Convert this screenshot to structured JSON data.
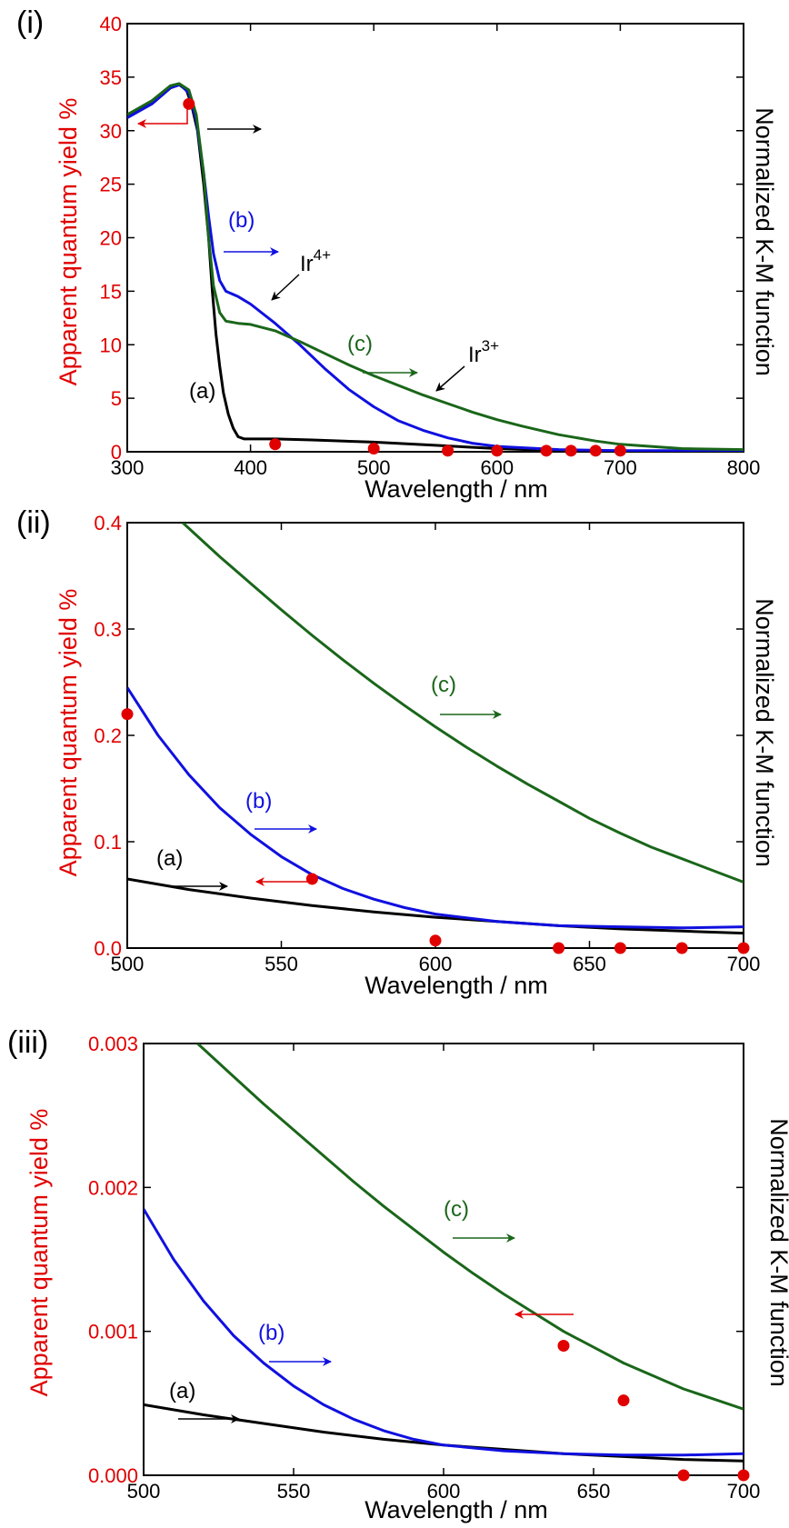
{
  "colors": {
    "red": "#e00000",
    "black": "#000000",
    "blue": "#1010e0",
    "green": "#1a661a"
  },
  "chart_data": [
    {
      "type": "line",
      "panel_label": "(i)",
      "xlabel": "Wavelength / nm",
      "ylabel_left": "Apparent quantum yield %",
      "ylabel_right": "Normalized K-M function",
      "xlim": [
        300,
        800
      ],
      "ylim": [
        0,
        40
      ],
      "xticks": [
        "300",
        "400",
        "500",
        "600",
        "700",
        "800"
      ],
      "yticks": [
        "0",
        "5",
        "10",
        "15",
        "20",
        "25",
        "30",
        "35",
        "40"
      ],
      "series": [
        {
          "name": "(a)",
          "color": "#000000",
          "points": [
            [
              300,
              31.5
            ],
            [
              320,
              32.5
            ],
            [
              335,
              34.0
            ],
            [
              342,
              34.3
            ],
            [
              348,
              33.8
            ],
            [
              352,
              32.5
            ],
            [
              357,
              30.0
            ],
            [
              362,
              25.0
            ],
            [
              366,
              20.0
            ],
            [
              369,
              15.0
            ],
            [
              372,
              11.0
            ],
            [
              375,
              8.0
            ],
            [
              378,
              5.5
            ],
            [
              382,
              3.5
            ],
            [
              386,
              2.2
            ],
            [
              390,
              1.4
            ],
            [
              395,
              1.2
            ],
            [
              420,
              1.2
            ],
            [
              450,
              1.1
            ],
            [
              500,
              0.9
            ],
            [
              550,
              0.6
            ],
            [
              600,
              0.3
            ],
            [
              650,
              0.1
            ],
            [
              700,
              0.05
            ],
            [
              800,
              0.0
            ]
          ]
        },
        {
          "name": "(b)",
          "color": "#1010e0",
          "points": [
            [
              300,
              31.2
            ],
            [
              320,
              32.5
            ],
            [
              335,
              34.0
            ],
            [
              343,
              34.3
            ],
            [
              350,
              33.5
            ],
            [
              356,
              31.0
            ],
            [
              362,
              26.0
            ],
            [
              366,
              22.0
            ],
            [
              370,
              18.5
            ],
            [
              375,
              16.0
            ],
            [
              380,
              15.0
            ],
            [
              390,
              14.5
            ],
            [
              400,
              13.8
            ],
            [
              420,
              12.0
            ],
            [
              440,
              10.0
            ],
            [
              460,
              7.8
            ],
            [
              480,
              5.8
            ],
            [
              500,
              4.2
            ],
            [
              520,
              2.9
            ],
            [
              540,
              2.0
            ],
            [
              560,
              1.3
            ],
            [
              580,
              0.8
            ],
            [
              600,
              0.5
            ],
            [
              650,
              0.2
            ],
            [
              700,
              0.1
            ],
            [
              800,
              0.1
            ]
          ]
        },
        {
          "name": "(c)",
          "color": "#1a661a",
          "points": [
            [
              300,
              31.5
            ],
            [
              320,
              32.8
            ],
            [
              335,
              34.2
            ],
            [
              342,
              34.4
            ],
            [
              350,
              33.8
            ],
            [
              356,
              31.5
            ],
            [
              362,
              26.0
            ],
            [
              366,
              20.0
            ],
            [
              370,
              15.5
            ],
            [
              375,
              13.0
            ],
            [
              380,
              12.2
            ],
            [
              390,
              12.0
            ],
            [
              400,
              11.9
            ],
            [
              420,
              11.3
            ],
            [
              440,
              10.3
            ],
            [
              460,
              9.2
            ],
            [
              480,
              8.1
            ],
            [
              500,
              7.1
            ],
            [
              520,
              6.2
            ],
            [
              540,
              5.3
            ],
            [
              560,
              4.5
            ],
            [
              580,
              3.7
            ],
            [
              600,
              3.0
            ],
            [
              620,
              2.4
            ],
            [
              650,
              1.6
            ],
            [
              680,
              1.0
            ],
            [
              700,
              0.7
            ],
            [
              750,
              0.3
            ],
            [
              800,
              0.2
            ]
          ]
        }
      ],
      "points_name": "Apparent quantum yield",
      "points": [
        [
          350,
          32.5
        ],
        [
          420,
          0.7
        ],
        [
          500,
          0.3
        ],
        [
          560,
          0.1
        ],
        [
          600,
          0.1
        ],
        [
          640,
          0.1
        ],
        [
          660,
          0.1
        ],
        [
          680,
          0.1
        ],
        [
          700,
          0.1
        ]
      ],
      "annotations": {
        "a": "(a)",
        "b": "(b)",
        "c": "(c)",
        "ir4": "Ir",
        "ir4_sup": "4+",
        "ir3": "Ir",
        "ir3_sup": "3+"
      }
    },
    {
      "type": "line",
      "panel_label": "(ii)",
      "xlabel": "Wavelength / nm",
      "ylabel_left": "Apparent quantum yield %",
      "ylabel_right": "Normalized K-M function",
      "xlim": [
        500,
        700
      ],
      "ylim": [
        0,
        0.4
      ],
      "xticks": [
        "500",
        "550",
        "600",
        "650",
        "700"
      ],
      "yticks": [
        "0.0",
        "0.1",
        "0.2",
        "0.3",
        "0.4"
      ],
      "series": [
        {
          "name": "(a)",
          "color": "#000000",
          "points": [
            [
              500,
              0.065
            ],
            [
              520,
              0.055
            ],
            [
              540,
              0.047
            ],
            [
              560,
              0.04
            ],
            [
              580,
              0.034
            ],
            [
              600,
              0.029
            ],
            [
              620,
              0.025
            ],
            [
              640,
              0.021
            ],
            [
              660,
              0.018
            ],
            [
              680,
              0.016
            ],
            [
              700,
              0.014
            ]
          ]
        },
        {
          "name": "(b)",
          "color": "#1010e0",
          "points": [
            [
              500,
              0.245
            ],
            [
              510,
              0.2
            ],
            [
              520,
              0.163
            ],
            [
              530,
              0.132
            ],
            [
              540,
              0.107
            ],
            [
              550,
              0.086
            ],
            [
              560,
              0.069
            ],
            [
              570,
              0.056
            ],
            [
              580,
              0.046
            ],
            [
              590,
              0.038
            ],
            [
              600,
              0.032
            ],
            [
              620,
              0.025
            ],
            [
              640,
              0.021
            ],
            [
              660,
              0.02
            ],
            [
              680,
              0.019
            ],
            [
              700,
              0.02
            ]
          ]
        },
        {
          "name": "(c)",
          "color": "#1a661a",
          "points": [
            [
              518,
              0.4
            ],
            [
              530,
              0.368
            ],
            [
              540,
              0.343
            ],
            [
              550,
              0.318
            ],
            [
              560,
              0.294
            ],
            [
              570,
              0.271
            ],
            [
              580,
              0.249
            ],
            [
              590,
              0.228
            ],
            [
              600,
              0.208
            ],
            [
              610,
              0.189
            ],
            [
              620,
              0.171
            ],
            [
              630,
              0.154
            ],
            [
              640,
              0.138
            ],
            [
              650,
              0.122
            ],
            [
              660,
              0.108
            ],
            [
              670,
              0.095
            ],
            [
              680,
              0.084
            ],
            [
              690,
              0.073
            ],
            [
              700,
              0.062
            ]
          ]
        }
      ],
      "points_name": "Apparent quantum yield",
      "points": [
        [
          500,
          0.22
        ],
        [
          560,
          0.065
        ],
        [
          600,
          0.007
        ],
        [
          640,
          0.0
        ],
        [
          660,
          0.0
        ],
        [
          680,
          0.0
        ],
        [
          700,
          0.0
        ]
      ],
      "annotations": {
        "a": "(a)",
        "b": "(b)",
        "c": "(c)"
      }
    },
    {
      "type": "line",
      "panel_label": "(iii)",
      "xlabel": "Wavelength / nm",
      "ylabel_left": "Apparent quantum yield %",
      "ylabel_right": "Normalized K-M function",
      "xlim": [
        500,
        700
      ],
      "ylim": [
        0,
        0.003
      ],
      "xticks": [
        "500",
        "550",
        "600",
        "650",
        "700"
      ],
      "yticks": [
        "0.000",
        "0.001",
        "0.002",
        "0.003"
      ],
      "series": [
        {
          "name": "(a)",
          "color": "#000000",
          "points": [
            [
              500,
              0.00049
            ],
            [
              520,
              0.00042
            ],
            [
              540,
              0.00036
            ],
            [
              560,
              0.0003
            ],
            [
              580,
              0.00025
            ],
            [
              600,
              0.00021
            ],
            [
              620,
              0.00018
            ],
            [
              640,
              0.00015
            ],
            [
              660,
              0.00013
            ],
            [
              680,
              0.00011
            ],
            [
              700,
              0.0001
            ]
          ]
        },
        {
          "name": "(b)",
          "color": "#1010e0",
          "points": [
            [
              500,
              0.00185
            ],
            [
              510,
              0.0015
            ],
            [
              520,
              0.00121
            ],
            [
              530,
              0.00097
            ],
            [
              540,
              0.00078
            ],
            [
              550,
              0.00062
            ],
            [
              560,
              0.00049
            ],
            [
              570,
              0.00039
            ],
            [
              580,
              0.00031
            ],
            [
              590,
              0.00025
            ],
            [
              600,
              0.00021
            ],
            [
              620,
              0.00017
            ],
            [
              640,
              0.00015
            ],
            [
              660,
              0.00014
            ],
            [
              680,
              0.00014
            ],
            [
              700,
              0.00015
            ]
          ]
        },
        {
          "name": "(c)",
          "color": "#1a661a",
          "points": [
            [
              518,
              0.003
            ],
            [
              530,
              0.00277
            ],
            [
              540,
              0.00258
            ],
            [
              550,
              0.0024
            ],
            [
              560,
              0.00222
            ],
            [
              570,
              0.00204
            ],
            [
              580,
              0.00187
            ],
            [
              590,
              0.00171
            ],
            [
              600,
              0.00155
            ],
            [
              610,
              0.0014
            ],
            [
              620,
              0.00126
            ],
            [
              630,
              0.00113
            ],
            [
              640,
              0.001
            ],
            [
              650,
              0.00089
            ],
            [
              660,
              0.00078
            ],
            [
              670,
              0.00069
            ],
            [
              680,
              0.0006
            ],
            [
              690,
              0.00053
            ],
            [
              700,
              0.00046
            ]
          ]
        }
      ],
      "points_name": "Apparent quantum yield",
      "points": [
        [
          640,
          0.0009
        ],
        [
          660,
          0.00052
        ],
        [
          680,
          0.0
        ],
        [
          700,
          0.0
        ]
      ],
      "annotations": {
        "a": "(a)",
        "b": "(b)",
        "c": "(c)"
      }
    }
  ]
}
